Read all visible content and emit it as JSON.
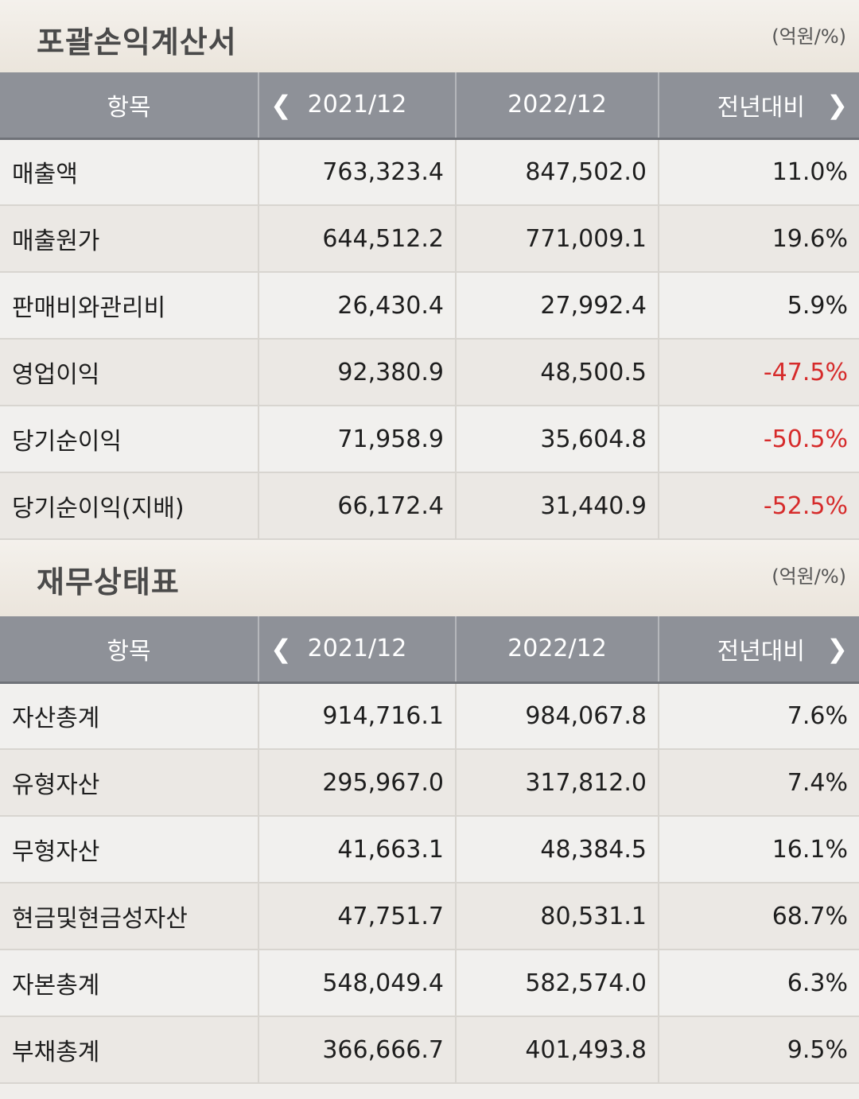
{
  "income_statement": {
    "title": "포괄손익계산서",
    "unit": "(억원/%)",
    "headers": [
      "항목",
      "2021/12",
      "2022/12",
      "전년대비"
    ],
    "rows": [
      {
        "item": "매출액",
        "y2021": "763,323.4",
        "y2022": "847,502.0",
        "yoy": "11.0%",
        "negative": false
      },
      {
        "item": "매출원가",
        "y2021": "644,512.2",
        "y2022": "771,009.1",
        "yoy": "19.6%",
        "negative": false
      },
      {
        "item": "판매비와관리비",
        "y2021": "26,430.4",
        "y2022": "27,992.4",
        "yoy": "5.9%",
        "negative": false
      },
      {
        "item": "영업이익",
        "y2021": "92,380.9",
        "y2022": "48,500.5",
        "yoy": "-47.5%",
        "negative": true
      },
      {
        "item": "당기순이익",
        "y2021": "71,958.9",
        "y2022": "35,604.8",
        "yoy": "-50.5%",
        "negative": true
      },
      {
        "item": "당기순이익(지배)",
        "y2021": "66,172.4",
        "y2022": "31,440.9",
        "yoy": "-52.5%",
        "negative": true
      }
    ]
  },
  "balance_sheet": {
    "title": "재무상태표",
    "unit": "(억원/%)",
    "headers": [
      "항목",
      "2021/12",
      "2022/12",
      "전년대비"
    ],
    "rows": [
      {
        "item": "자산총계",
        "y2021": "914,716.1",
        "y2022": "984,067.8",
        "yoy": "7.6%",
        "negative": false
      },
      {
        "item": "유형자산",
        "y2021": "295,967.0",
        "y2022": "317,812.0",
        "yoy": "7.4%",
        "negative": false
      },
      {
        "item": "무형자산",
        "y2021": "41,663.1",
        "y2022": "48,384.5",
        "yoy": "16.1%",
        "negative": false
      },
      {
        "item": "현금및현금성자산",
        "y2021": "47,751.7",
        "y2022": "80,531.1",
        "yoy": "68.7%",
        "negative": false
      },
      {
        "item": "자본총계",
        "y2021": "548,049.4",
        "y2022": "582,574.0",
        "yoy": "6.3%",
        "negative": false
      },
      {
        "item": "부채총계",
        "y2021": "366,666.7",
        "y2022": "401,493.8",
        "yoy": "9.5%",
        "negative": false
      }
    ]
  },
  "colors": {
    "header_bg": "#8e9198",
    "negative": "#d62b2b"
  }
}
